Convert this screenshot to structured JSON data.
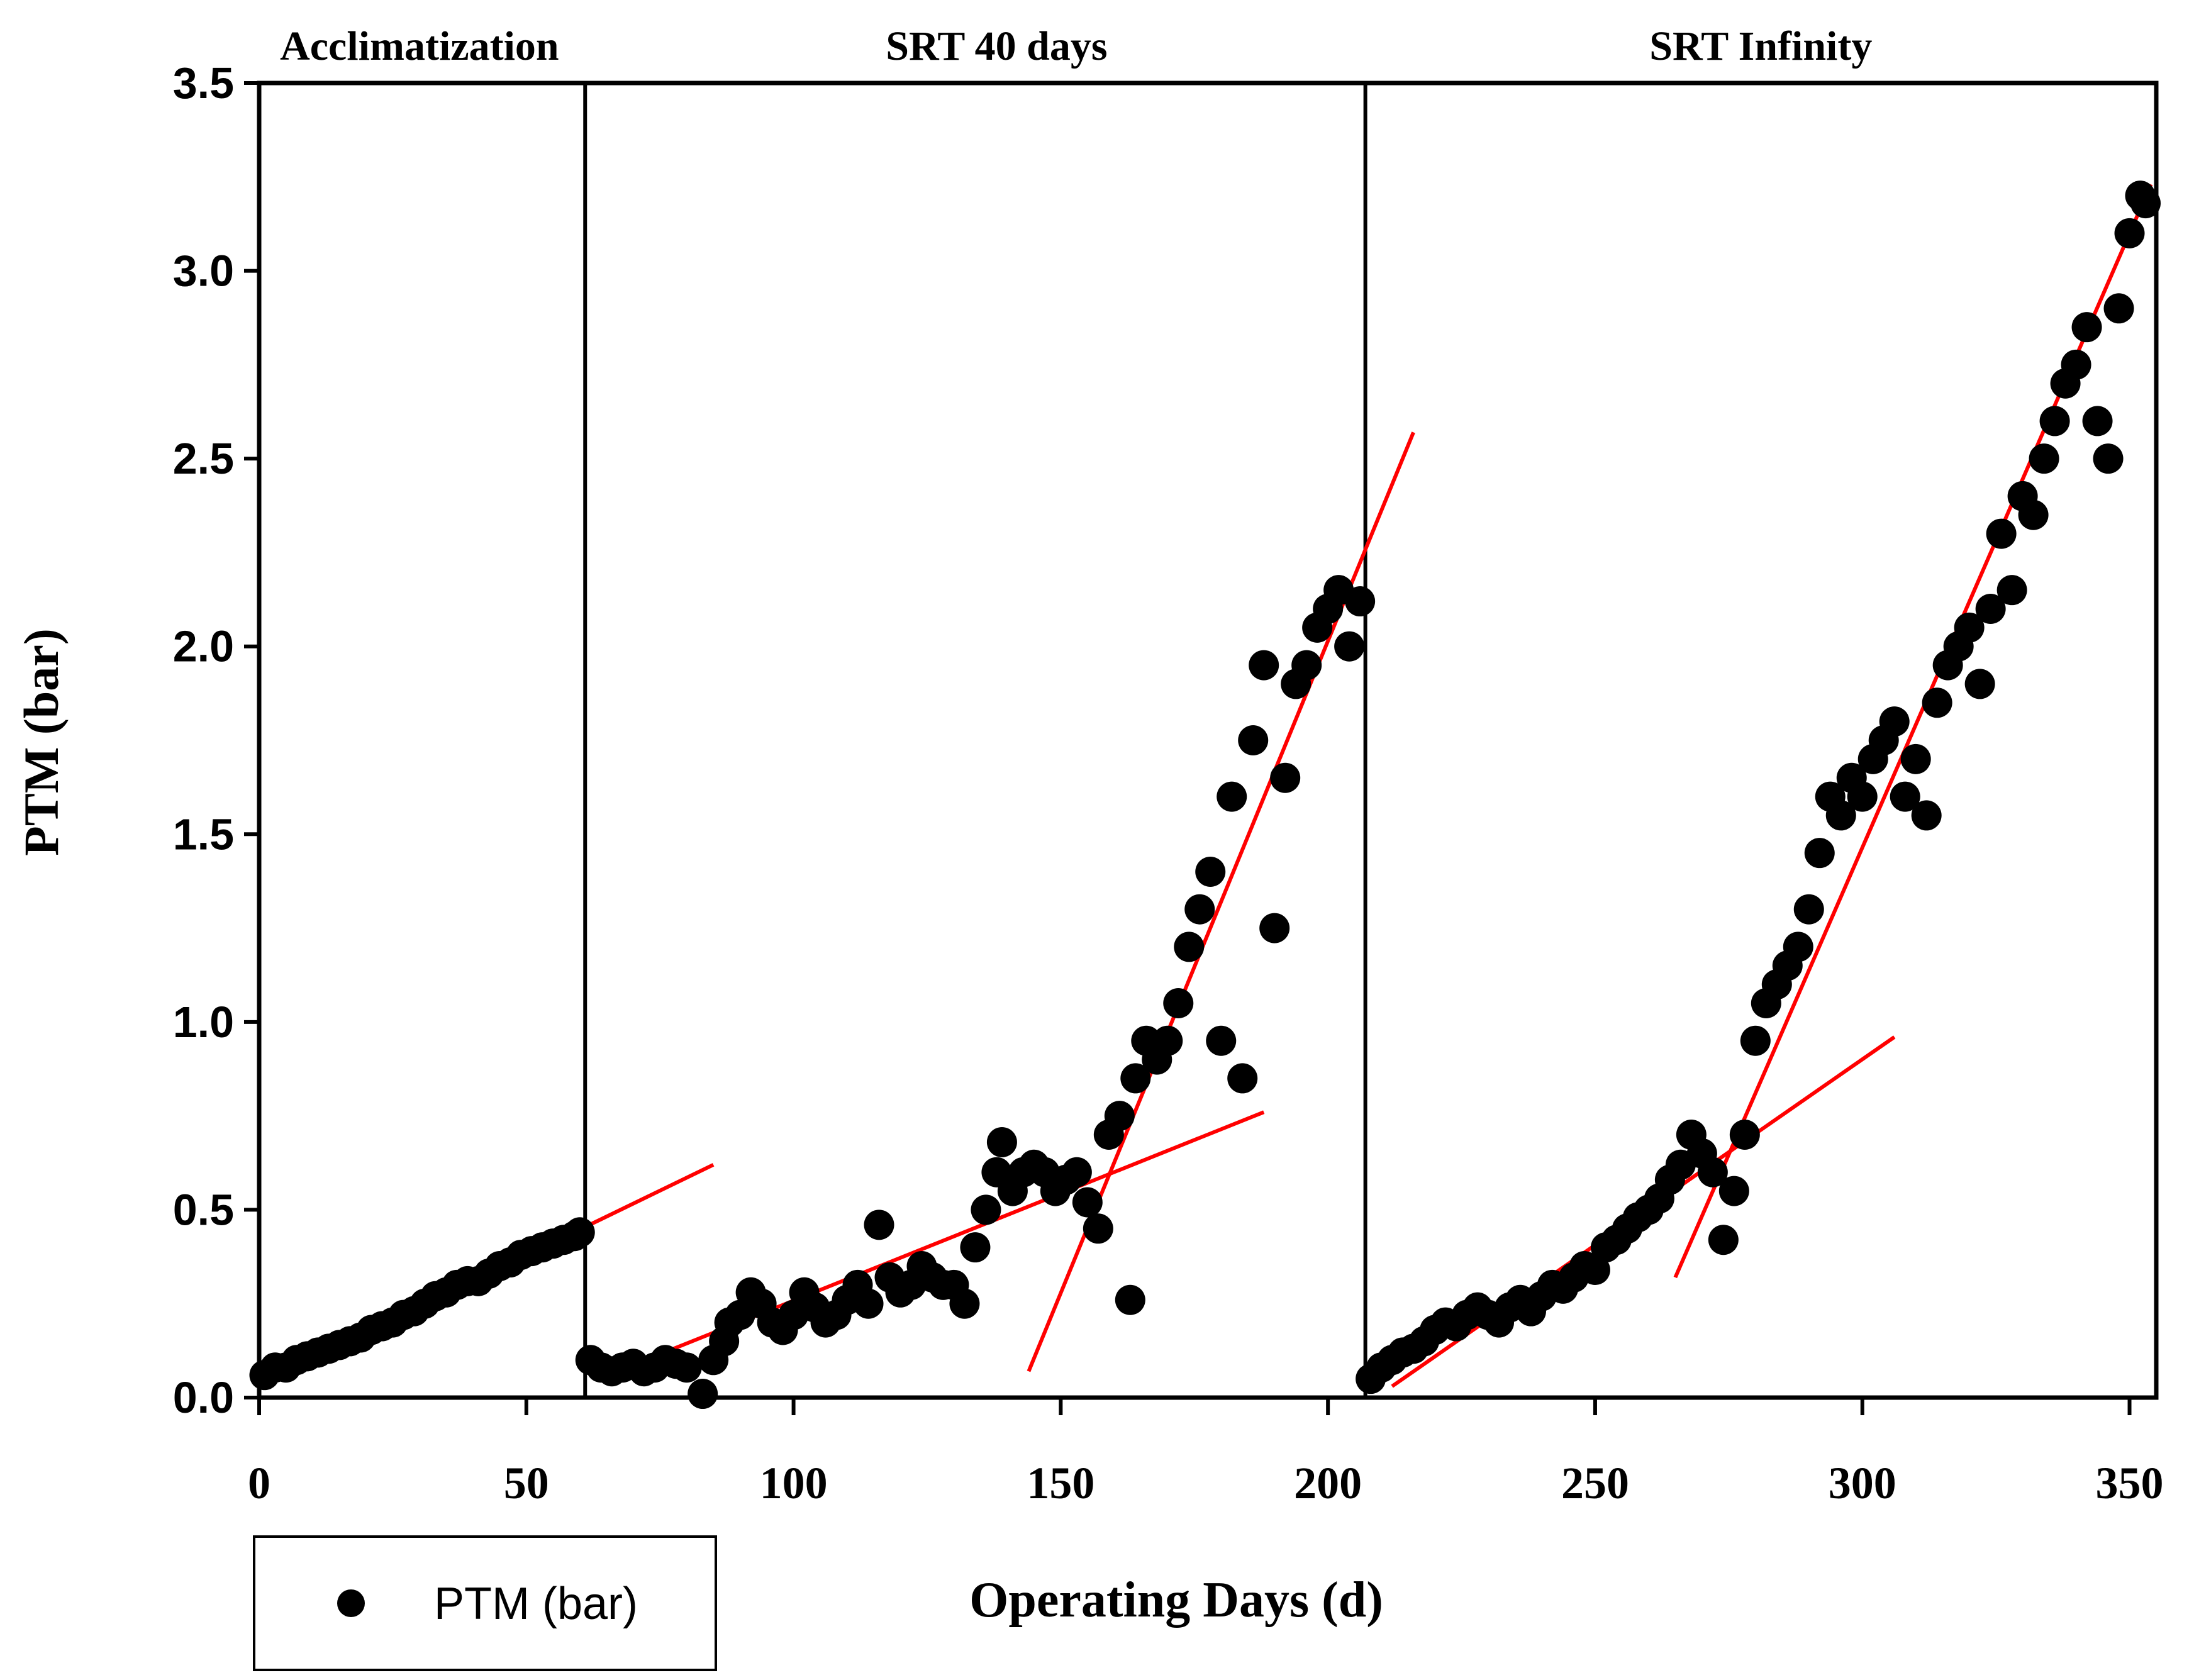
{
  "chart_data": {
    "type": "scatter",
    "xlabel": "Operating Days (d)",
    "ylabel": "PTM (bar)",
    "xlim": [
      0,
      355
    ],
    "ylim": [
      0,
      3.5
    ],
    "x_ticks": [
      0,
      50,
      100,
      150,
      200,
      250,
      300,
      350
    ],
    "y_ticks": [
      "0.0",
      "0.5",
      "1.0",
      "1.5",
      "2.0",
      "2.5",
      "3.0",
      "3.5"
    ],
    "phase_boundaries": [
      61,
      207
    ],
    "phases": [
      {
        "label": "Acclimatization",
        "x_center": 30
      },
      {
        "label": "SRT 40 days",
        "x_center": 138
      },
      {
        "label": "SRT Infinity",
        "x_center": 281
      }
    ],
    "legend": {
      "label": "PTM (bar)"
    },
    "colors": {
      "points": "#000000",
      "fit_lines": "#ff0000",
      "axes": "#000000"
    },
    "series": [
      {
        "name": "PTM (bar)",
        "points": [
          [
            1,
            0.06
          ],
          [
            3,
            0.08
          ],
          [
            5,
            0.08
          ],
          [
            7,
            0.1
          ],
          [
            9,
            0.11
          ],
          [
            11,
            0.12
          ],
          [
            13,
            0.13
          ],
          [
            15,
            0.14
          ],
          [
            17,
            0.15
          ],
          [
            19,
            0.16
          ],
          [
            21,
            0.18
          ],
          [
            23,
            0.19
          ],
          [
            25,
            0.2
          ],
          [
            27,
            0.22
          ],
          [
            29,
            0.23
          ],
          [
            31,
            0.25
          ],
          [
            33,
            0.27
          ],
          [
            35,
            0.28
          ],
          [
            37,
            0.3
          ],
          [
            39,
            0.31
          ],
          [
            41,
            0.31
          ],
          [
            43,
            0.33
          ],
          [
            45,
            0.35
          ],
          [
            47,
            0.36
          ],
          [
            49,
            0.38
          ],
          [
            51,
            0.39
          ],
          [
            53,
            0.4
          ],
          [
            55,
            0.41
          ],
          [
            57,
            0.42
          ],
          [
            59,
            0.43
          ],
          [
            60,
            0.44
          ],
          [
            62,
            0.1
          ],
          [
            64,
            0.08
          ],
          [
            66,
            0.07
          ],
          [
            68,
            0.08
          ],
          [
            70,
            0.09
          ],
          [
            72,
            0.07
          ],
          [
            74,
            0.08
          ],
          [
            76,
            0.1
          ],
          [
            78,
            0.09
          ],
          [
            80,
            0.08
          ],
          [
            83,
            0.01
          ],
          [
            85,
            0.1
          ],
          [
            87,
            0.15
          ],
          [
            88,
            0.2
          ],
          [
            90,
            0.22
          ],
          [
            92,
            0.28
          ],
          [
            94,
            0.25
          ],
          [
            96,
            0.2
          ],
          [
            98,
            0.18
          ],
          [
            100,
            0.22
          ],
          [
            102,
            0.28
          ],
          [
            104,
            0.24
          ],
          [
            106,
            0.2
          ],
          [
            108,
            0.22
          ],
          [
            110,
            0.26
          ],
          [
            112,
            0.3
          ],
          [
            114,
            0.25
          ],
          [
            116,
            0.46
          ],
          [
            118,
            0.32
          ],
          [
            120,
            0.28
          ],
          [
            122,
            0.3
          ],
          [
            124,
            0.35
          ],
          [
            126,
            0.32
          ],
          [
            128,
            0.3
          ],
          [
            130,
            0.3
          ],
          [
            132,
            0.25
          ],
          [
            134,
            0.4
          ],
          [
            136,
            0.5
          ],
          [
            138,
            0.6
          ],
          [
            139,
            0.68
          ],
          [
            141,
            0.55
          ],
          [
            143,
            0.6
          ],
          [
            145,
            0.62
          ],
          [
            147,
            0.6
          ],
          [
            149,
            0.55
          ],
          [
            151,
            0.58
          ],
          [
            153,
            0.6
          ],
          [
            155,
            0.52
          ],
          [
            157,
            0.45
          ],
          [
            159,
            0.7
          ],
          [
            161,
            0.75
          ],
          [
            163,
            0.26
          ],
          [
            164,
            0.85
          ],
          [
            166,
            0.95
          ],
          [
            168,
            0.9
          ],
          [
            170,
            0.95
          ],
          [
            172,
            1.05
          ],
          [
            174,
            1.2
          ],
          [
            176,
            1.3
          ],
          [
            178,
            1.4
          ],
          [
            180,
            0.95
          ],
          [
            182,
            1.6
          ],
          [
            184,
            0.85
          ],
          [
            186,
            1.75
          ],
          [
            188,
            1.95
          ],
          [
            190,
            1.25
          ],
          [
            192,
            1.65
          ],
          [
            194,
            1.9
          ],
          [
            196,
            1.95
          ],
          [
            198,
            2.05
          ],
          [
            200,
            2.1
          ],
          [
            202,
            2.15
          ],
          [
            204,
            2.0
          ],
          [
            206,
            2.12
          ],
          [
            208,
            0.05
          ],
          [
            210,
            0.08
          ],
          [
            212,
            0.1
          ],
          [
            214,
            0.12
          ],
          [
            216,
            0.13
          ],
          [
            218,
            0.15
          ],
          [
            220,
            0.18
          ],
          [
            222,
            0.2
          ],
          [
            224,
            0.19
          ],
          [
            226,
            0.22
          ],
          [
            228,
            0.24
          ],
          [
            230,
            0.22
          ],
          [
            232,
            0.2
          ],
          [
            234,
            0.24
          ],
          [
            236,
            0.26
          ],
          [
            238,
            0.23
          ],
          [
            240,
            0.27
          ],
          [
            242,
            0.3
          ],
          [
            244,
            0.29
          ],
          [
            246,
            0.32
          ],
          [
            248,
            0.35
          ],
          [
            250,
            0.34
          ],
          [
            252,
            0.4
          ],
          [
            254,
            0.42
          ],
          [
            256,
            0.45
          ],
          [
            258,
            0.48
          ],
          [
            260,
            0.5
          ],
          [
            262,
            0.53
          ],
          [
            264,
            0.58
          ],
          [
            266,
            0.62
          ],
          [
            268,
            0.7
          ],
          [
            270,
            0.65
          ],
          [
            272,
            0.6
          ],
          [
            274,
            0.42
          ],
          [
            276,
            0.55
          ],
          [
            278,
            0.7
          ],
          [
            280,
            0.95
          ],
          [
            282,
            1.05
          ],
          [
            284,
            1.1
          ],
          [
            286,
            1.15
          ],
          [
            288,
            1.2
          ],
          [
            290,
            1.3
          ],
          [
            292,
            1.45
          ],
          [
            294,
            1.6
          ],
          [
            296,
            1.55
          ],
          [
            298,
            1.65
          ],
          [
            300,
            1.6
          ],
          [
            302,
            1.7
          ],
          [
            304,
            1.75
          ],
          [
            306,
            1.8
          ],
          [
            308,
            1.6
          ],
          [
            310,
            1.7
          ],
          [
            312,
            1.55
          ],
          [
            314,
            1.85
          ],
          [
            316,
            1.95
          ],
          [
            318,
            2.0
          ],
          [
            320,
            2.05
          ],
          [
            322,
            1.9
          ],
          [
            324,
            2.1
          ],
          [
            326,
            2.3
          ],
          [
            328,
            2.15
          ],
          [
            330,
            2.4
          ],
          [
            332,
            2.35
          ],
          [
            334,
            2.5
          ],
          [
            336,
            2.6
          ],
          [
            338,
            2.7
          ],
          [
            340,
            2.75
          ],
          [
            342,
            2.85
          ],
          [
            344,
            2.6
          ],
          [
            346,
            2.5
          ],
          [
            348,
            2.9
          ],
          [
            350,
            3.1
          ],
          [
            352,
            3.2
          ],
          [
            353,
            3.18
          ]
        ]
      }
    ],
    "fit_lines": [
      {
        "x": [
          1,
          85
        ],
        "y": [
          0.04,
          0.62
        ]
      },
      {
        "x": [
          67,
          188
        ],
        "y": [
          0.07,
          0.76
        ]
      },
      {
        "x": [
          144,
          216
        ],
        "y": [
          0.07,
          2.57
        ]
      },
      {
        "x": [
          212,
          306
        ],
        "y": [
          0.03,
          0.96
        ]
      },
      {
        "x": [
          265,
          354
        ],
        "y": [
          0.32,
          3.23
        ]
      }
    ]
  }
}
